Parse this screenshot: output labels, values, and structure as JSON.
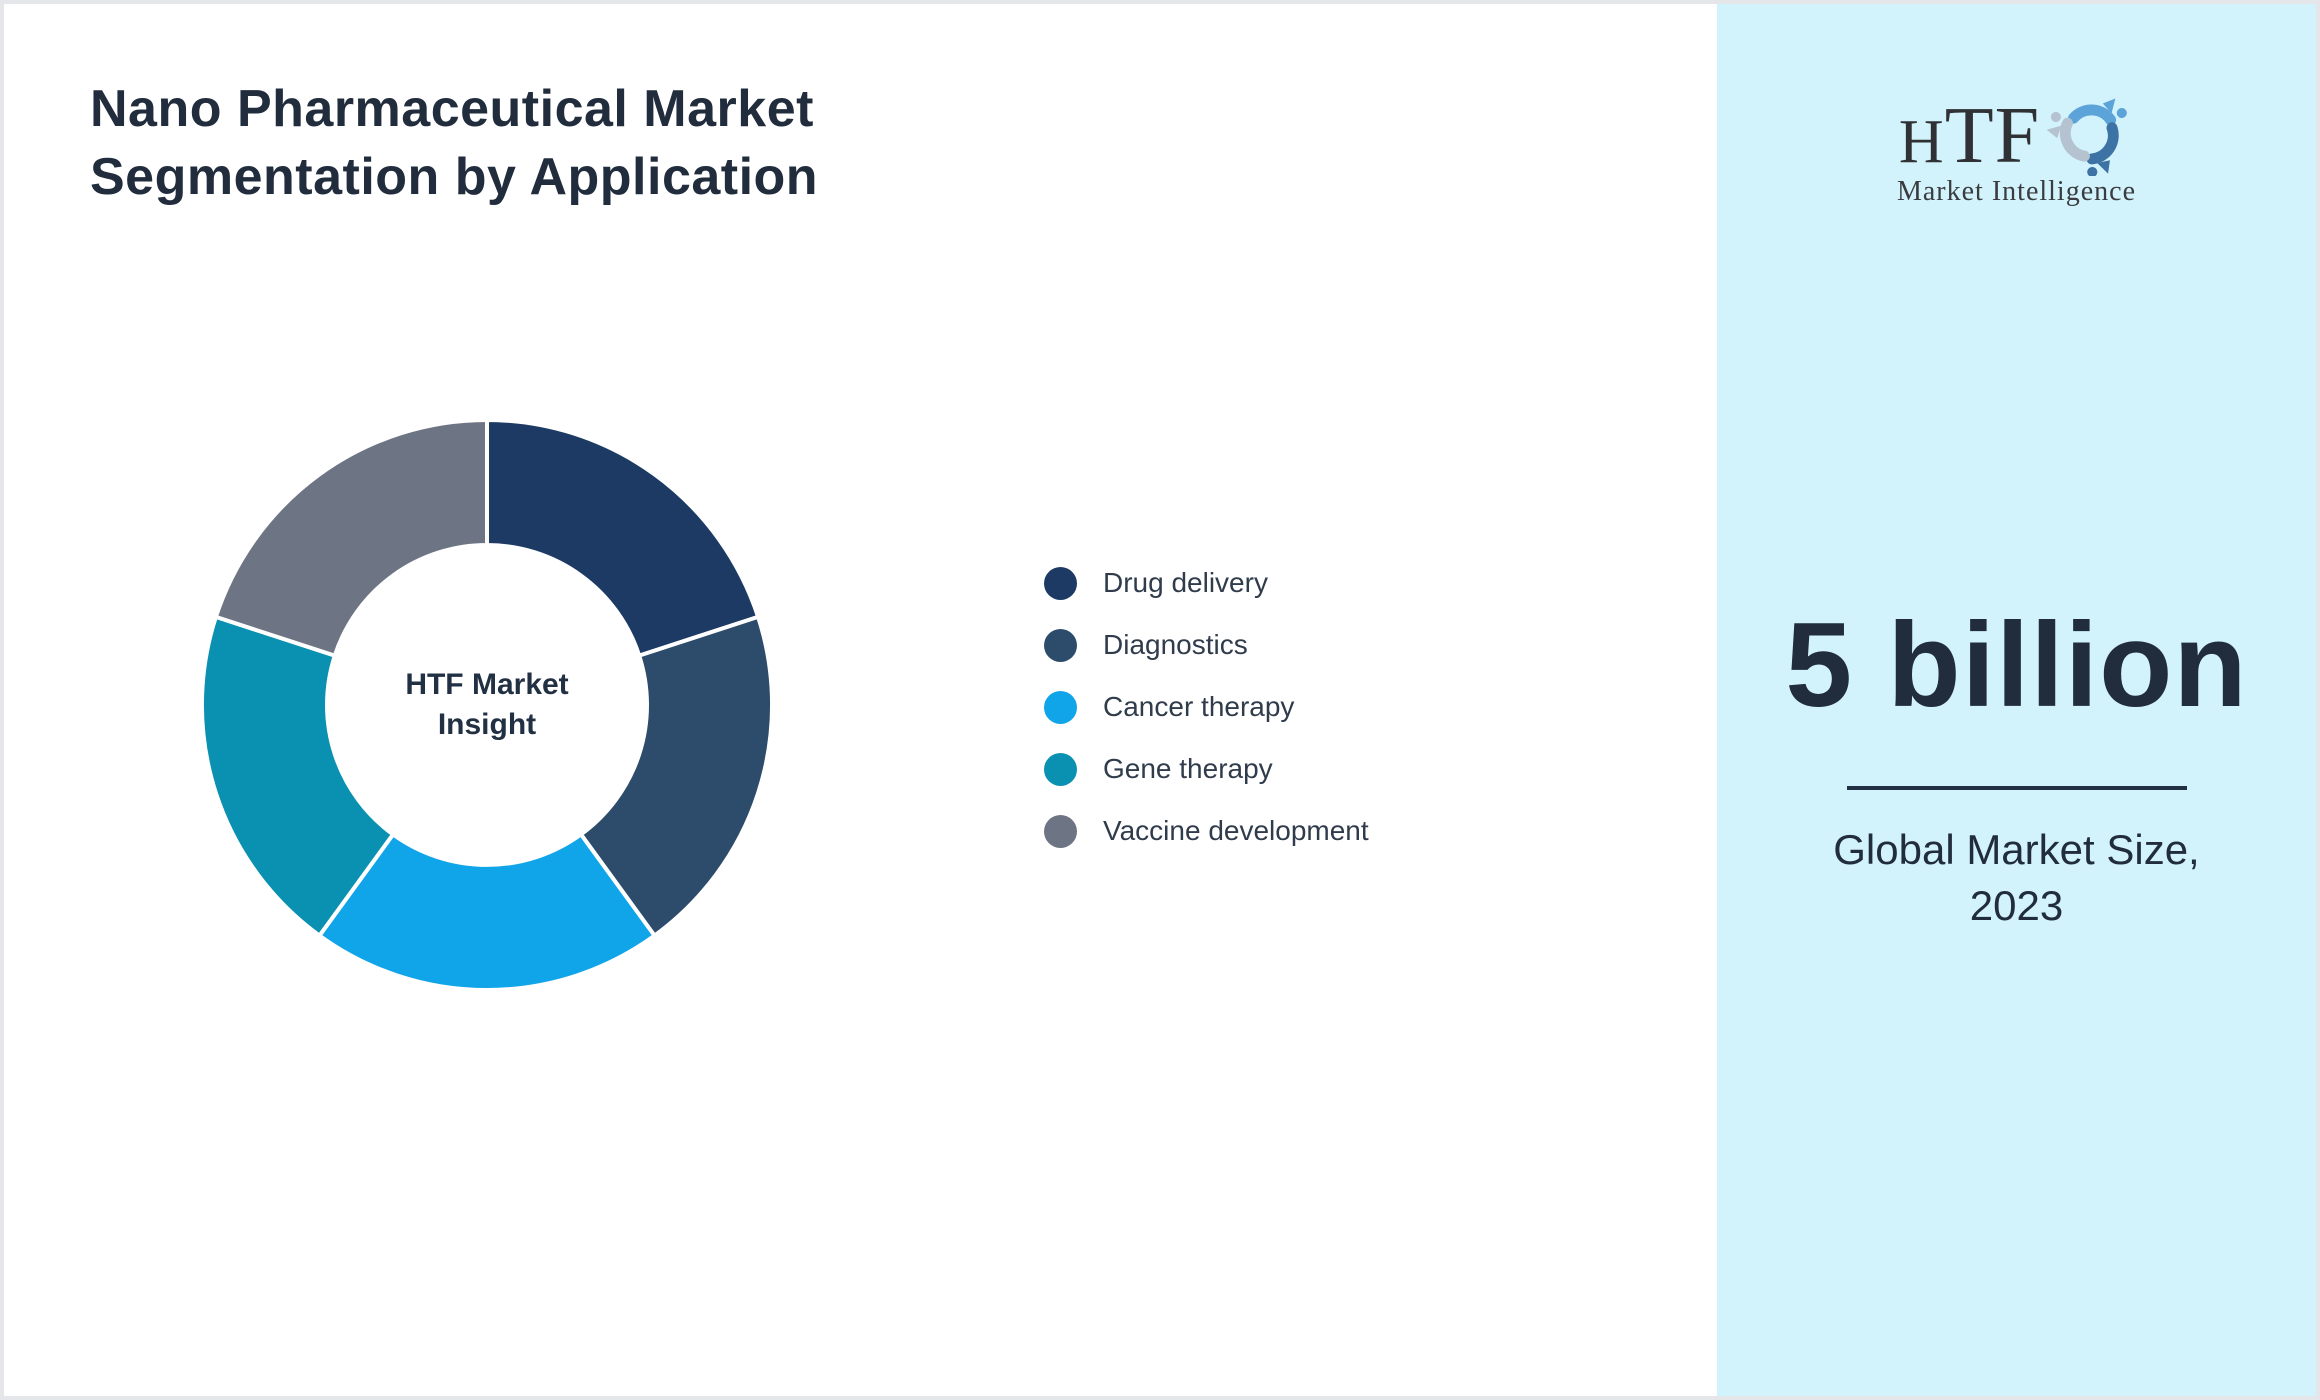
{
  "page": {
    "title": "Nano Pharmaceutical Market\nSegmentation by Application"
  },
  "chart_data": {
    "type": "pie",
    "variant": "donut",
    "title": "Nano Pharmaceutical Market Segmentation by Application",
    "center_label": "HTF Market\nInsight",
    "start_angle_deg": 0,
    "direction": "clockwise",
    "inner_radius_ratio": 0.56,
    "legend_position": "right",
    "segments": [
      {
        "label": "Drug delivery",
        "value": 20,
        "color": "#1d3a64"
      },
      {
        "label": "Diagnostics",
        "value": 20,
        "color": "#2d4c6b"
      },
      {
        "label": "Cancer therapy",
        "value": 20,
        "color": "#10a5e9"
      },
      {
        "label": "Gene therapy",
        "value": 20,
        "color": "#0a91b1"
      },
      {
        "label": "Vaccine development",
        "value": 20,
        "color": "#6d7483"
      }
    ]
  },
  "sidebar": {
    "background": "#d2f3fb",
    "logo": {
      "letters": [
        "H",
        "T",
        "F"
      ],
      "subtitle": "Market Intelligence",
      "icon": "dolphin-swirl-icon",
      "icon_colors": [
        "#5ba3d9",
        "#3d72a4",
        "#b5c2cf"
      ]
    },
    "stat_value": "5 billion",
    "stat_caption": "Global Market Size,\n2023"
  },
  "colors": {
    "title_text": "#212c3d",
    "legend_text": "#303c4c",
    "panel_background": "#d2f3fb",
    "page_border": "#e4e6ea",
    "divider": "#223043"
  }
}
